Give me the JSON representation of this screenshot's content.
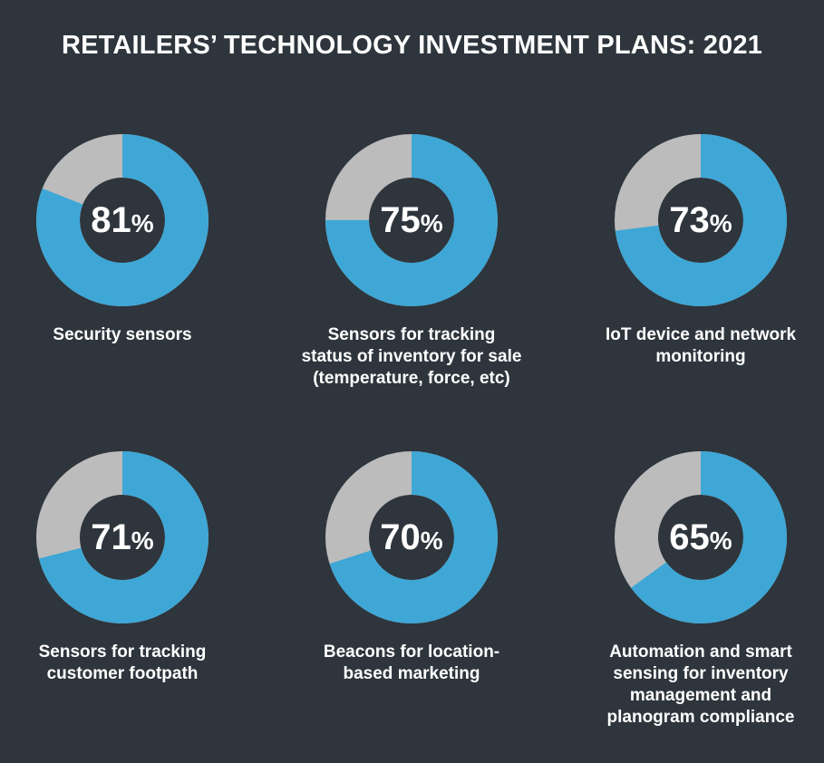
{
  "chart_data": {
    "type": "pie",
    "title": "RETAILERS’ TECHNOLOGY INVESTMENT PLANS: 2021",
    "colors": {
      "filled": "#3ea7d6",
      "remainder": "#bcbcbc",
      "hole": "#2e353c"
    },
    "items": [
      {
        "value": 81,
        "value_text": "81",
        "unit": "%",
        "label": "Security sensors"
      },
      {
        "value": 75,
        "value_text": "75",
        "unit": "%",
        "label": "Sensors for tracking\nstatus of inventory for sale\n(temperature, force, etc)"
      },
      {
        "value": 73,
        "value_text": "73",
        "unit": "%",
        "label": "IoT device and network\nmonitoring"
      },
      {
        "value": 71,
        "value_text": "71",
        "unit": "%",
        "label": "Sensors for tracking\ncustomer footpath"
      },
      {
        "value": 70,
        "value_text": "70",
        "unit": "%",
        "label": "Beacons for location-\nbased marketing"
      },
      {
        "value": 65,
        "value_text": "65",
        "unit": "%",
        "label": "Automation and smart\nsensing for inventory\nmanagement and\nplanogram compliance"
      }
    ]
  }
}
